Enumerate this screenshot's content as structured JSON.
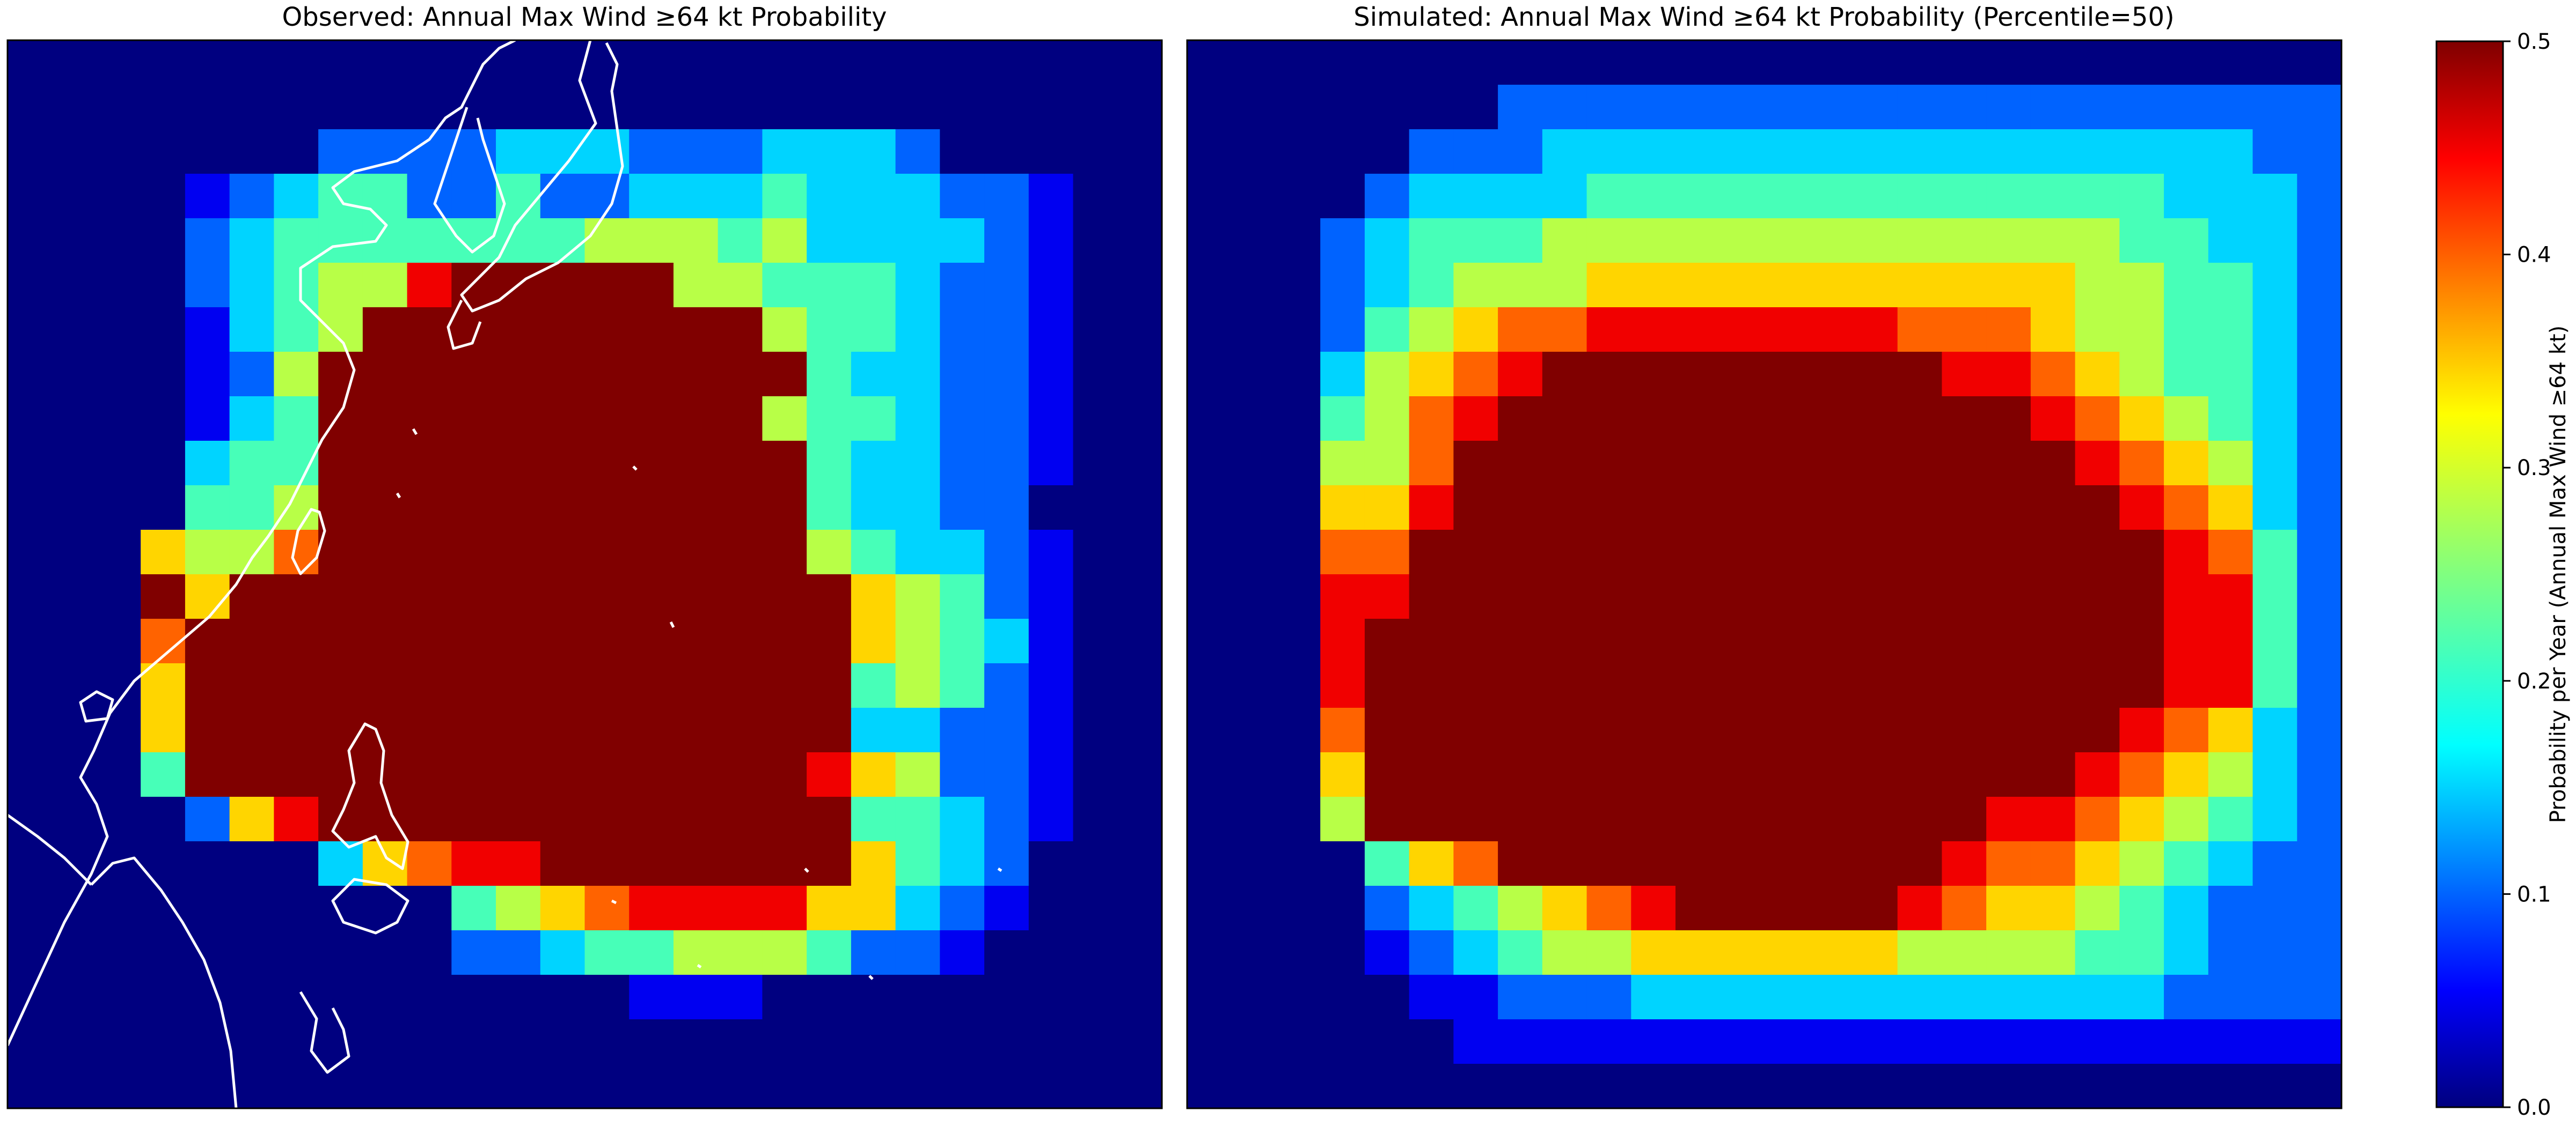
{
  "chart_data": [
    {
      "type": "heatmap",
      "title": "Observed: Annual Max Wind ≥64 kt Probability",
      "grid": "26 x 24 cells",
      "rows": [
        "00000000000000000000000000",
        "00000000000000000000000000",
        "00000002222333222333200000",
        "00001234422422333433322100",
        "00002344444445554533332100",
        "00002345589999955444322100",
        "00001345999999999544322100",
        "00001259999999999943322100",
        "00001349999999999544322100",
        "00003449999999999943322100",
        "00004459999999999943322000",
        "00065579999999999954332100",
        "00096999999999999996542100",
        "00079999999999999996543100",
        "00069999999999999994542100",
        "00069999999999999993322100",
        "00049999999999999986522100",
        "00002689999999999994432100",
        "00000003678899999996432000",
        "00000000004567888866321000",
        "00000000002234455542210000",
        "00000000000000111000000000",
        "00000000000000000000000000",
        "00000000000000000000000000"
      ],
      "level_scale": "digit d = probability d/18, 9 = 0.5",
      "colormap": "jet",
      "vmin": 0,
      "vmax": 0.5
    },
    {
      "type": "heatmap",
      "title": "Simulated: Annual Max Wind ≥64 kt Probability (Percentile=50)",
      "grid": "26 x 24 cells",
      "rows": [
        "00000000000000000000000000",
        "00000002222222222222222222",
        "00000222333333333333333322",
        "00002333344444444444443332",
        "00023444555555555555544332",
        "00023455566666666666554432",
        "00024567788888887776554432",
        "00035678999999999887654432",
        "00045789999999999998765432",
        "00055799999999999999876532",
        "00066899999999999999987632",
        "00077999999999999999998742",
        "00088999999999999999998842",
        "00089999999999999999998842",
        "00089999999999999999998842",
        "00079999999999999999987632",
        "00069999999999999999876532",
        "00059999999999999988765432",
        "00004679999999999877654322",
        "00002345678999998766543222",
        "00001234556666665555443222",
        "00000112223333333333332222",
        "00000011111111111111111111",
        "00000000000000000000000000"
      ],
      "level_scale": "digit d = probability d/18, 9 = 0.5",
      "colormap": "jet",
      "vmin": 0,
      "vmax": 0.5
    }
  ],
  "colorbar": {
    "label": "Probability per Year (Annual Max Wind ≥64 kt)",
    "ticks": [
      "0.0",
      "0.1",
      "0.2",
      "0.3",
      "0.4",
      "0.5"
    ],
    "tick_values": [
      0,
      0.1,
      0.2,
      0.3,
      0.4,
      0.5
    ],
    "colormap": "jet",
    "min": 0,
    "max": 0.5
  },
  "colors": {
    "coastline": "#ffffff",
    "frame": "#000000"
  }
}
